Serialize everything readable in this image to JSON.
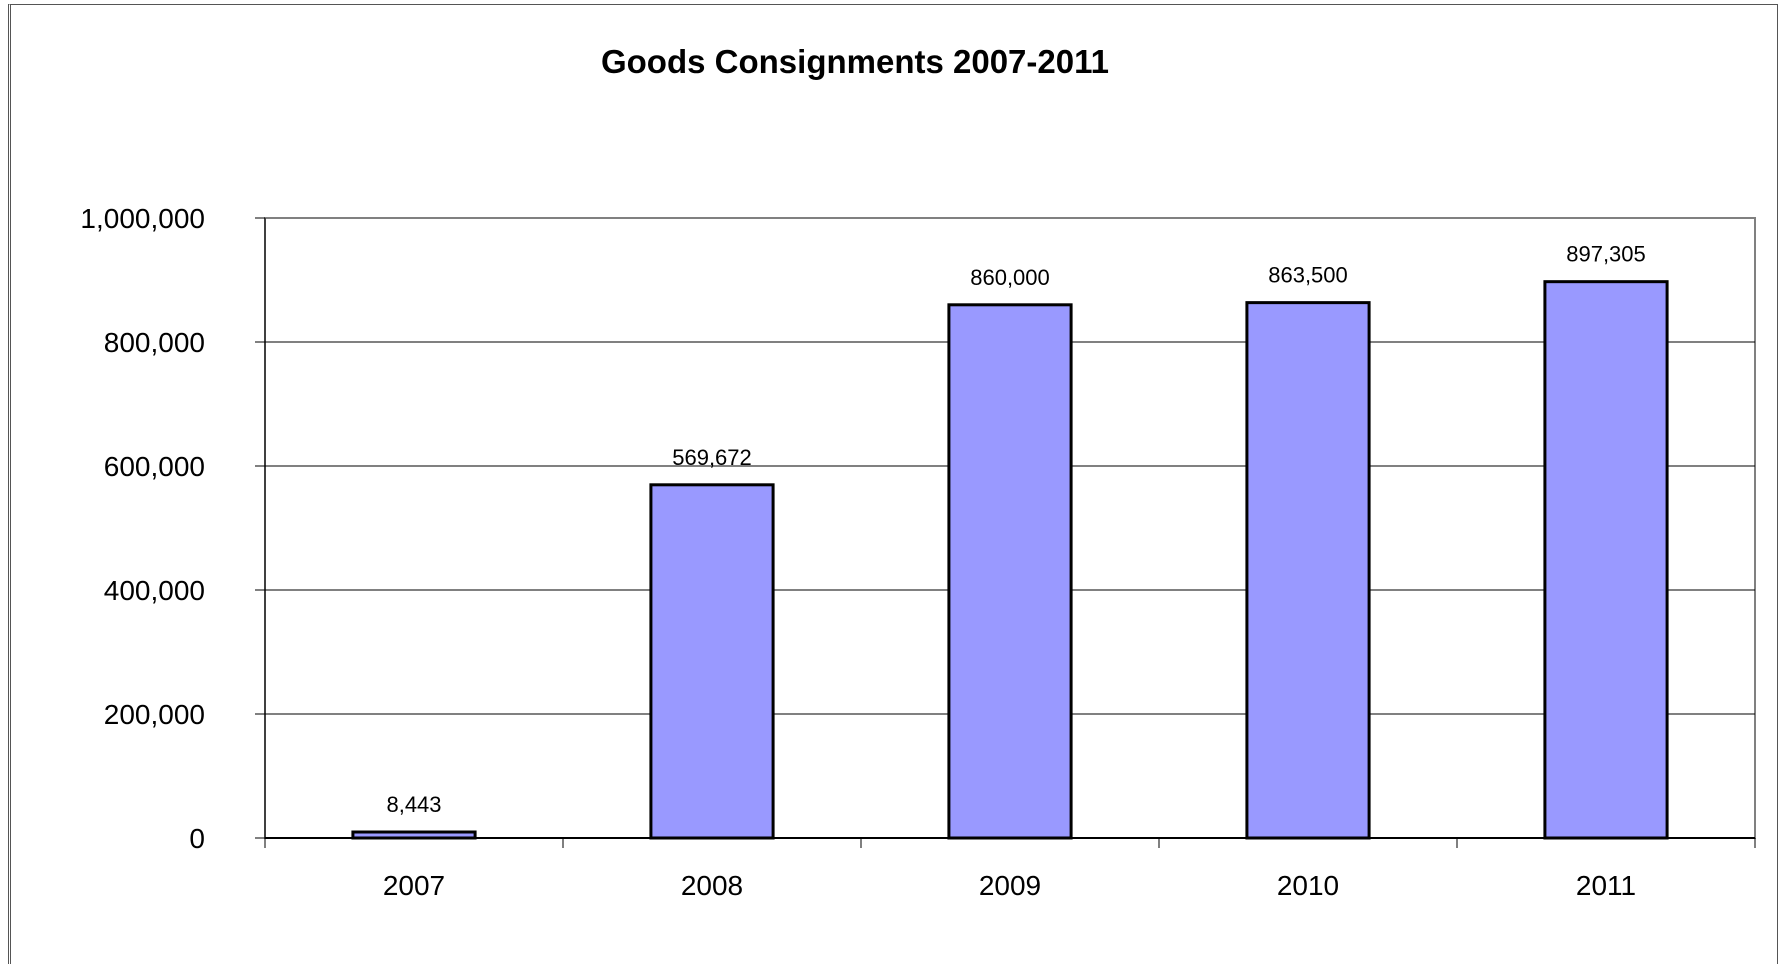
{
  "chart_data": {
    "type": "bar",
    "title": "Goods Consignments 2007-2011",
    "xlabel": "",
    "ylabel": "",
    "categories": [
      "2007",
      "2008",
      "2009",
      "2010",
      "2011"
    ],
    "values": [
      8443,
      569672,
      860000,
      863500,
      897305
    ],
    "data_labels": [
      "8,443",
      "569,672",
      "860,000",
      "863,500",
      "897,305"
    ],
    "ylim": [
      0,
      1000000
    ],
    "yticks": [
      0,
      200000,
      400000,
      600000,
      800000,
      1000000
    ],
    "ytick_labels": [
      "0",
      "200,000",
      "400,000",
      "600,000",
      "800,000",
      "1,000,000"
    ],
    "grid": true,
    "legend": "none",
    "colors": {
      "bar_fill": "#9999ff",
      "bar_stroke": "#000000",
      "gridline": "#000000",
      "plot_border": "#808080"
    }
  }
}
